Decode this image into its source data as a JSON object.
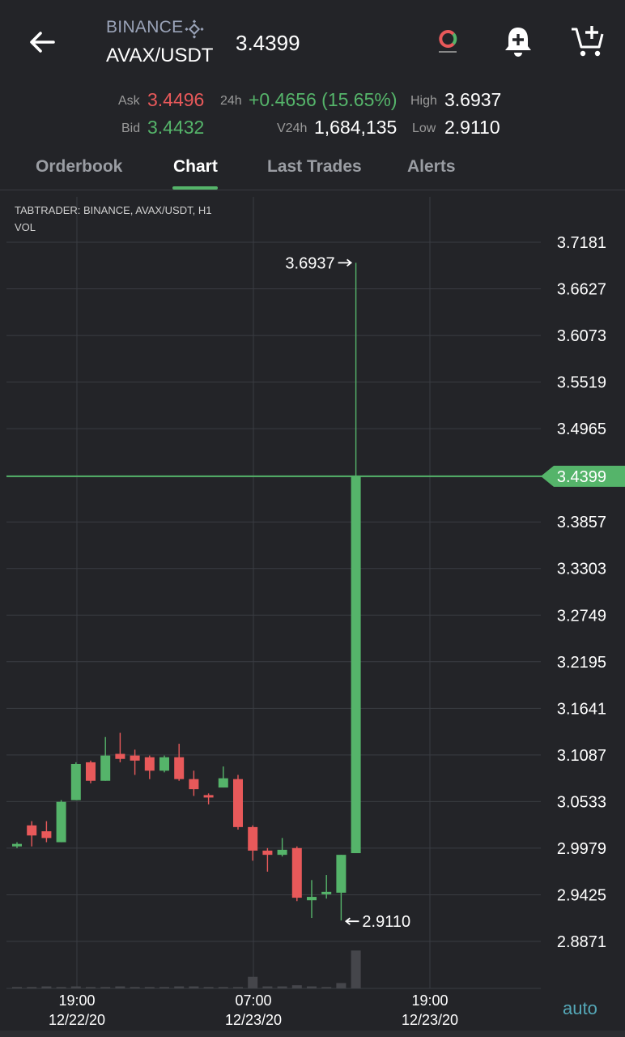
{
  "header": {
    "exchange": "BINANCE",
    "pair": "AVAX/USDT",
    "last_price": "3.4399"
  },
  "stats": {
    "ask_label": "Ask",
    "ask_value": "3.4496",
    "bid_label": "Bid",
    "bid_value": "3.4432",
    "change_label": "24h",
    "change_value": "+0.4656 (15.65%)",
    "volume_label": "V24h",
    "volume_value": "1,684,135",
    "high_label": "High",
    "high_value": "3.6937",
    "low_label": "Low",
    "low_value": "2.9110"
  },
  "tabs": [
    {
      "label": "Orderbook",
      "active": false
    },
    {
      "label": "Chart",
      "active": true
    },
    {
      "label": "Last Trades",
      "active": false
    },
    {
      "label": "Alerts",
      "active": false
    }
  ],
  "colors": {
    "up": "#55b46a",
    "down": "#e8595a",
    "background": "#232428",
    "accent": "#55a8b8"
  },
  "chart_data": {
    "type": "candlestick",
    "info_line_1": "TABTRADER: BINANCE, AVAX/USDT, H1",
    "info_line_2": "VOL",
    "y_ticks": [
      "3.7181",
      "3.6627",
      "3.6073",
      "3.5519",
      "3.4965",
      "3.3857",
      "3.3303",
      "3.2749",
      "3.2195",
      "3.1641",
      "3.1087",
      "3.0533",
      "2.9979",
      "2.9425",
      "2.8871"
    ],
    "ylim": [
      2.8871,
      3.7181
    ],
    "current_price_label": "3.4399",
    "current_price": 3.4399,
    "high_marker": {
      "label": "3.6937",
      "value": 3.6937
    },
    "low_marker": {
      "label": "2.9110",
      "value": 2.911
    },
    "x_ticks": [
      {
        "time": "19:00",
        "date": "12/22/20"
      },
      {
        "time": "07:00",
        "date": "12/23/20"
      },
      {
        "time": "19:00",
        "date": "12/23/20"
      }
    ],
    "candles": [
      {
        "o": 3.0,
        "h": 3.005,
        "l": 2.998,
        "c": 3.003
      },
      {
        "o": 3.025,
        "h": 3.03,
        "l": 3.0,
        "c": 3.013
      },
      {
        "o": 3.018,
        "h": 3.03,
        "l": 3.005,
        "c": 3.01
      },
      {
        "o": 3.005,
        "h": 3.055,
        "l": 3.005,
        "c": 3.053
      },
      {
        "o": 3.055,
        "h": 3.1,
        "l": 3.055,
        "c": 3.098
      },
      {
        "o": 3.1,
        "h": 3.102,
        "l": 3.075,
        "c": 3.078
      },
      {
        "o": 3.078,
        "h": 3.13,
        "l": 3.078,
        "c": 3.108
      },
      {
        "o": 3.11,
        "h": 3.135,
        "l": 3.1,
        "c": 3.104
      },
      {
        "o": 3.108,
        "h": 3.115,
        "l": 3.085,
        "c": 3.102
      },
      {
        "o": 3.106,
        "h": 3.108,
        "l": 3.08,
        "c": 3.09
      },
      {
        "o": 3.09,
        "h": 3.108,
        "l": 3.088,
        "c": 3.106
      },
      {
        "o": 3.106,
        "h": 3.122,
        "l": 3.078,
        "c": 3.08
      },
      {
        "o": 3.08,
        "h": 3.09,
        "l": 3.06,
        "c": 3.068
      },
      {
        "o": 3.061,
        "h": 3.063,
        "l": 3.05,
        "c": 3.059
      },
      {
        "o": 3.07,
        "h": 3.095,
        "l": 3.07,
        "c": 3.081
      },
      {
        "o": 3.08,
        "h": 3.085,
        "l": 3.02,
        "c": 3.023
      },
      {
        "o": 3.023,
        "h": 3.025,
        "l": 2.983,
        "c": 2.995
      },
      {
        "o": 2.995,
        "h": 2.998,
        "l": 2.97,
        "c": 2.99
      },
      {
        "o": 2.99,
        "h": 3.01,
        "l": 2.988,
        "c": 2.996
      },
      {
        "o": 2.998,
        "h": 3.0,
        "l": 2.935,
        "c": 2.939
      },
      {
        "o": 2.936,
        "h": 2.96,
        "l": 2.915,
        "c": 2.94
      },
      {
        "o": 2.944,
        "h": 2.966,
        "l": 2.938,
        "c": 2.946
      },
      {
        "o": 2.945,
        "h": 2.99,
        "l": 2.912,
        "c": 2.99
      },
      {
        "o": 2.992,
        "h": 3.6937,
        "l": 2.992,
        "c": 3.4399
      }
    ],
    "volumes": [
      0.6,
      0.6,
      0.9,
      0.6,
      0.9,
      0.6,
      0.6,
      0.9,
      0.6,
      0.6,
      0.6,
      0.9,
      0.9,
      0.6,
      0.6,
      0.6,
      5.2,
      0.9,
      0.9,
      1.4,
      0.9,
      0.6,
      2.4,
      17.0
    ],
    "grid": true
  },
  "footer": {
    "auto_label": "auto"
  }
}
